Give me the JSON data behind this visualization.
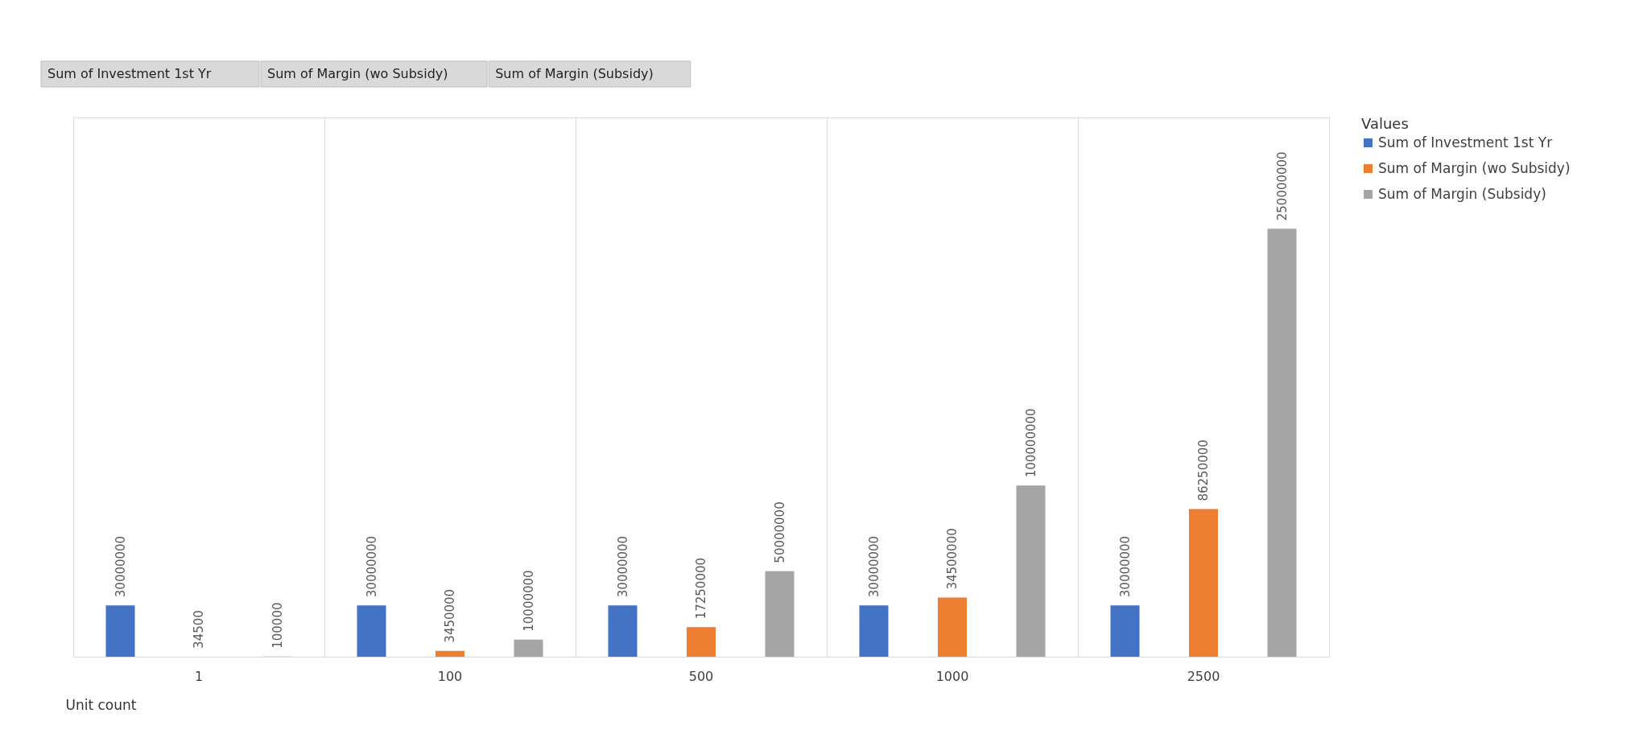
{
  "chart_data": {
    "type": "bar",
    "categories": [
      "1",
      "100",
      "500",
      "1000",
      "2500"
    ],
    "series": [
      {
        "name": "Sum of Investment 1st Yr",
        "color": "#4472c4",
        "values": [
          30000000,
          30000000,
          30000000,
          30000000,
          30000000
        ]
      },
      {
        "name": "Sum of Margin (wo Subsidy)",
        "color": "#ed7d31",
        "values": [
          34500,
          3450000,
          17250000,
          34500000,
          86250000
        ]
      },
      {
        "name": "Sum of Margin (Subsidy)",
        "color": "#a5a5a5",
        "values": [
          100000,
          10000000,
          50000000,
          100000000,
          250000000
        ]
      }
    ],
    "xlabel": "Unit count",
    "legend_title": "Values",
    "legend": "right",
    "data_labels": true,
    "grid": "x",
    "annotations": [
      "Sum of Investment  1st Yr",
      "Sum of Margin (wo Subsidy)",
      "Sum of Margin (Subsidy)"
    ]
  }
}
